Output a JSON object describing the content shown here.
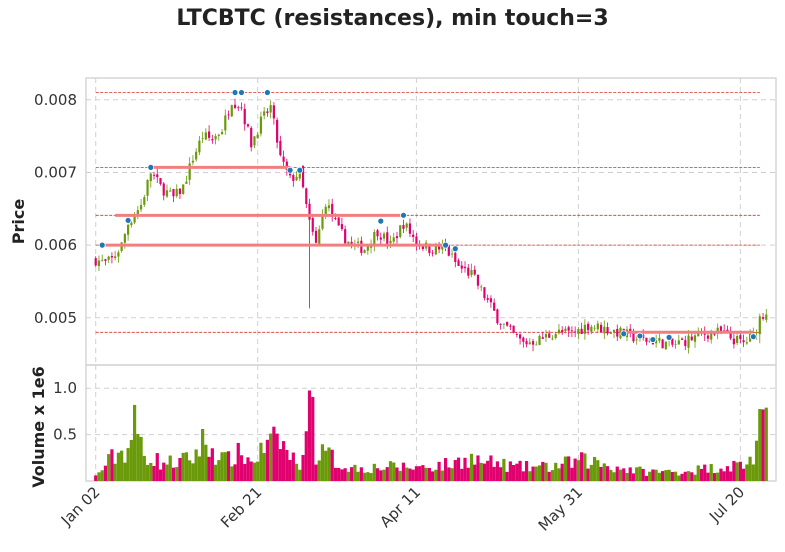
{
  "chart_data": {
    "type": "candlestick",
    "title": "LTCBTC (resistances), min touch=3",
    "price_panel": {
      "ylabel": "Price",
      "ylim": [
        0.00435,
        0.0083
      ],
      "yticks": [
        "0.005",
        "0.006",
        "0.007",
        "0.008"
      ],
      "ytick_values": [
        0.005,
        0.006,
        0.007,
        0.008
      ],
      "grid": true,
      "resistance_levels": [
        0.0081,
        0.00707,
        0.00641,
        0.006,
        0.0048
      ],
      "resistance_segments": [
        {
          "level": 0.006,
          "start_day": 2,
          "end_day": 108
        },
        {
          "level": 0.00641,
          "start_day": 6,
          "end_day": 95
        },
        {
          "level": 0.00707,
          "start_day": 17,
          "end_day": 60
        },
        {
          "level": 0.0048,
          "start_day": 163,
          "end_day": 203
        }
      ],
      "touch_points": [
        {
          "day": 2,
          "price": 0.006
        },
        {
          "day": 10,
          "price": 0.00634
        },
        {
          "day": 17,
          "price": 0.00707
        },
        {
          "day": 43,
          "price": 0.0081
        },
        {
          "day": 45,
          "price": 0.0081
        },
        {
          "day": 53,
          "price": 0.0081
        },
        {
          "day": 60,
          "price": 0.00703
        },
        {
          "day": 63,
          "price": 0.00703
        },
        {
          "day": 88,
          "price": 0.00633
        },
        {
          "day": 95,
          "price": 0.00641
        },
        {
          "day": 108,
          "price": 0.006
        },
        {
          "day": 111,
          "price": 0.00595
        },
        {
          "day": 163,
          "price": 0.00478
        },
        {
          "day": 168,
          "price": 0.00475
        },
        {
          "day": 172,
          "price": 0.0047
        },
        {
          "day": 177,
          "price": 0.00473
        },
        {
          "day": 203,
          "price": 0.00474
        }
      ]
    },
    "volume_panel": {
      "ylabel": "Volume x 1e6",
      "ylim": [
        0,
        1.25
      ],
      "yticks": [
        "0.5",
        "1.0"
      ],
      "ytick_values": [
        0.5,
        1.0
      ],
      "grid": true
    },
    "x_axis": {
      "day_range": [
        -3,
        210
      ],
      "ticks": [
        "Jan 02",
        "Feb 21",
        "Apr 11",
        "May 31",
        "Jul 20"
      ],
      "tick_days": [
        0,
        50,
        99,
        149,
        199
      ]
    },
    "close_anchors": [
      [
        0,
        0.0058
      ],
      [
        3,
        0.00575
      ],
      [
        5,
        0.0058
      ],
      [
        8,
        0.006
      ],
      [
        10,
        0.0063
      ],
      [
        14,
        0.00655
      ],
      [
        17,
        0.007
      ],
      [
        20,
        0.0068
      ],
      [
        24,
        0.00665
      ],
      [
        27,
        0.0068
      ],
      [
        30,
        0.0072
      ],
      [
        33,
        0.0075
      ],
      [
        36,
        0.00745
      ],
      [
        39,
        0.0076
      ],
      [
        42,
        0.008
      ],
      [
        45,
        0.0079
      ],
      [
        48,
        0.0074
      ],
      [
        51,
        0.0077
      ],
      [
        54,
        0.0079
      ],
      [
        57,
        0.0072
      ],
      [
        60,
        0.0069
      ],
      [
        63,
        0.007
      ],
      [
        66,
        0.0063
      ],
      [
        68,
        0.006
      ],
      [
        71,
        0.0066
      ],
      [
        75,
        0.0062
      ],
      [
        79,
        0.006
      ],
      [
        83,
        0.00595
      ],
      [
        87,
        0.0062
      ],
      [
        91,
        0.006
      ],
      [
        95,
        0.0063
      ],
      [
        99,
        0.00605
      ],
      [
        103,
        0.00595
      ],
      [
        108,
        0.00595
      ],
      [
        112,
        0.0057
      ],
      [
        116,
        0.0056
      ],
      [
        120,
        0.0053
      ],
      [
        124,
        0.005
      ],
      [
        128,
        0.0048
      ],
      [
        132,
        0.00465
      ],
      [
        137,
        0.0047
      ],
      [
        142,
        0.0048
      ],
      [
        147,
        0.00478
      ],
      [
        152,
        0.0049
      ],
      [
        157,
        0.00485
      ],
      [
        163,
        0.00478
      ],
      [
        168,
        0.0047
      ],
      [
        173,
        0.00468
      ],
      [
        178,
        0.00462
      ],
      [
        183,
        0.0047
      ],
      [
        188,
        0.00478
      ],
      [
        193,
        0.0048
      ],
      [
        197,
        0.0047
      ],
      [
        200,
        0.00465
      ],
      [
        203,
        0.00475
      ],
      [
        205,
        0.005
      ],
      [
        207,
        0.0051
      ]
    ],
    "volume_anchors": [
      [
        0,
        0.05
      ],
      [
        5,
        0.25
      ],
      [
        10,
        0.35
      ],
      [
        12,
        0.6
      ],
      [
        15,
        0.3
      ],
      [
        20,
        0.2
      ],
      [
        25,
        0.2
      ],
      [
        30,
        0.25
      ],
      [
        33,
        0.42
      ],
      [
        40,
        0.22
      ],
      [
        45,
        0.3
      ],
      [
        48,
        0.2
      ],
      [
        52,
        0.35
      ],
      [
        57,
        0.45
      ],
      [
        60,
        0.25
      ],
      [
        64,
        0.2
      ],
      [
        65,
        0.95
      ],
      [
        66,
        1.15
      ],
      [
        68,
        0.3
      ],
      [
        72,
        0.28
      ],
      [
        75,
        0.18
      ],
      [
        80,
        0.14
      ],
      [
        90,
        0.15
      ],
      [
        100,
        0.15
      ],
      [
        110,
        0.18
      ],
      [
        115,
        0.25
      ],
      [
        120,
        0.2
      ],
      [
        125,
        0.18
      ],
      [
        130,
        0.15
      ],
      [
        140,
        0.15
      ],
      [
        150,
        0.22
      ],
      [
        155,
        0.2
      ],
      [
        160,
        0.15
      ],
      [
        170,
        0.1
      ],
      [
        180,
        0.1
      ],
      [
        190,
        0.14
      ],
      [
        200,
        0.18
      ],
      [
        203,
        0.25
      ],
      [
        205,
        0.55
      ],
      [
        207,
        0.55
      ]
    ],
    "colors": {
      "up": "#6a9a0a",
      "down": "#e0006e",
      "resistance_line": "#f08080",
      "level_line": "#d73027",
      "touch_point": "#1f77b4",
      "grid": "#d0d0d0",
      "frame": "#d6d6d6"
    }
  }
}
